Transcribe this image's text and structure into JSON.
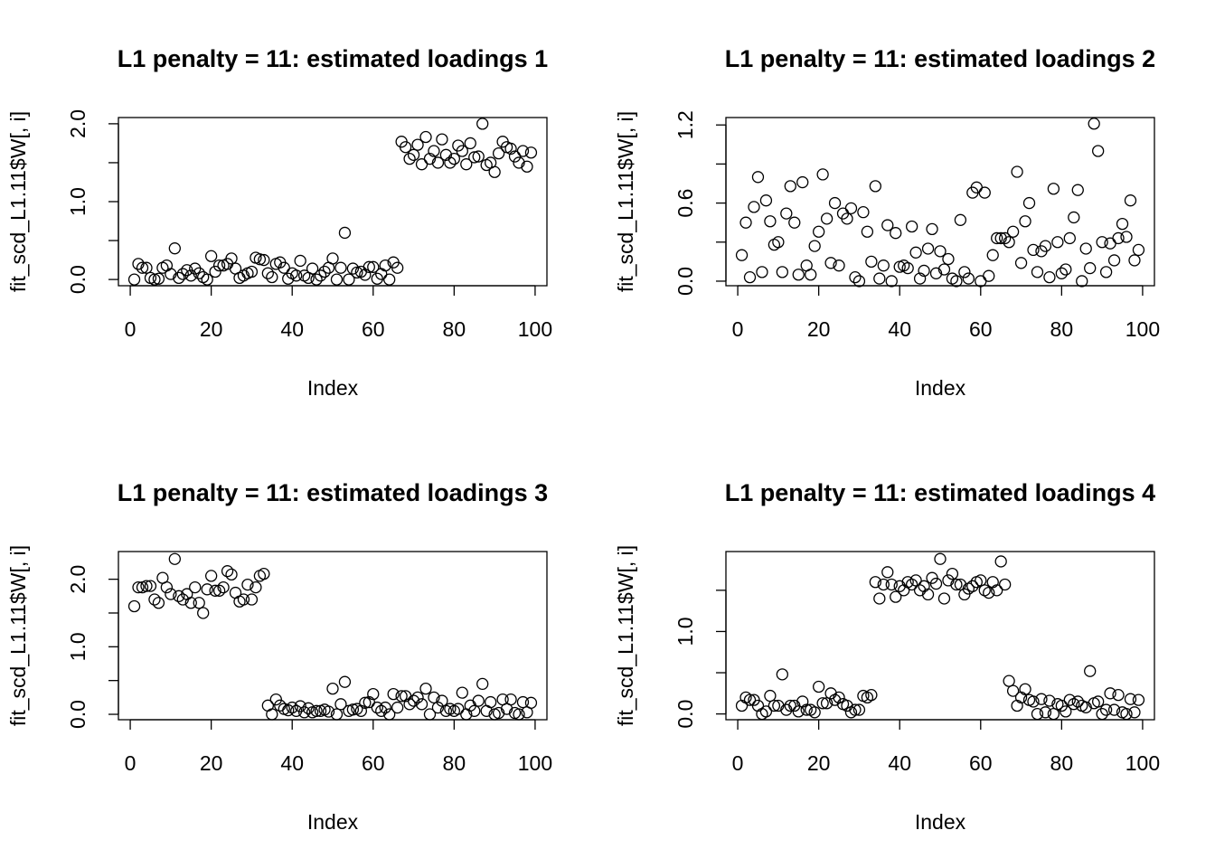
{
  "chart_data": [
    {
      "type": "scatter",
      "title": "L1 penalty = 11: estimated loadings 1",
      "x_label": "Index",
      "y_label": "fit_scd_L1.11$W[, i]",
      "x": [
        1,
        2,
        3,
        4,
        5,
        6,
        7,
        8,
        9,
        10,
        11,
        12,
        13,
        14,
        15,
        16,
        17,
        18,
        19,
        20,
        21,
        22,
        23,
        24,
        25,
        26,
        27,
        28,
        29,
        30,
        31,
        32,
        33,
        34,
        35,
        36,
        37,
        38,
        39,
        40,
        41,
        42,
        43,
        44,
        45,
        46,
        47,
        48,
        49,
        50,
        51,
        52,
        53,
        54,
        55,
        56,
        57,
        58,
        59,
        60,
        61,
        62,
        63,
        64,
        65,
        66,
        67,
        68,
        69,
        70,
        71,
        72,
        73,
        74,
        75,
        76,
        77,
        78,
        79,
        80,
        81,
        82,
        83,
        84,
        85,
        86,
        87,
        88,
        89,
        90,
        91,
        92,
        93,
        94,
        95,
        96,
        97,
        98,
        99
      ],
      "values": [
        0.0,
        0.2,
        0.15,
        0.15,
        0.02,
        0.0,
        0.01,
        0.15,
        0.18,
        0.07,
        0.4,
        0.02,
        0.07,
        0.12,
        0.05,
        0.14,
        0.08,
        0.03,
        0.0,
        0.3,
        0.1,
        0.18,
        0.18,
        0.2,
        0.27,
        0.14,
        0.02,
        0.05,
        0.08,
        0.1,
        0.28,
        0.26,
        0.25,
        0.08,
        0.03,
        0.2,
        0.22,
        0.15,
        0.01,
        0.08,
        0.05,
        0.24,
        0.05,
        0.02,
        0.14,
        0.0,
        0.05,
        0.1,
        0.15,
        0.27,
        0.0,
        0.15,
        0.6,
        0.0,
        0.14,
        0.09,
        0.1,
        0.06,
        0.16,
        0.16,
        0.01,
        0.07,
        0.18,
        0.0,
        0.22,
        0.15,
        1.77,
        1.7,
        1.55,
        1.6,
        1.73,
        1.48,
        1.83,
        1.55,
        1.65,
        1.5,
        1.8,
        1.6,
        1.5,
        1.55,
        1.72,
        1.65,
        1.48,
        1.75,
        1.57,
        1.58,
        2.0,
        1.47,
        1.5,
        1.38,
        1.62,
        1.77,
        1.7,
        1.68,
        1.58,
        1.5,
        1.65,
        1.45,
        1.63
      ],
      "xlim": [
        -2.92,
        102.92
      ],
      "xticks": [
        0,
        20,
        40,
        60,
        80,
        100
      ],
      "ylim": [
        -0.08,
        2.08
      ],
      "yticks": [
        {
          "value": 0,
          "label": "0.0"
        },
        {
          "value": 1,
          "label": "1.0"
        },
        {
          "value": 2,
          "label": "2.0"
        }
      ],
      "yminor_ticks": [
        0.5,
        1.5
      ],
      "color": "#000000"
    },
    {
      "type": "scatter",
      "title": "L1 penalty = 11: estimated loadings 2",
      "x_label": "Index",
      "y_label": "fit_scd_L1.11$W[, i]",
      "x": [
        1,
        2,
        3,
        4,
        5,
        6,
        7,
        8,
        9,
        10,
        11,
        12,
        13,
        14,
        15,
        16,
        17,
        18,
        19,
        20,
        21,
        22,
        23,
        24,
        25,
        26,
        27,
        28,
        29,
        30,
        31,
        32,
        33,
        34,
        35,
        36,
        37,
        38,
        39,
        40,
        41,
        42,
        43,
        44,
        45,
        46,
        47,
        48,
        49,
        50,
        51,
        52,
        53,
        54,
        55,
        56,
        57,
        58,
        59,
        60,
        61,
        62,
        63,
        64,
        65,
        66,
        67,
        68,
        69,
        70,
        71,
        72,
        73,
        74,
        75,
        76,
        77,
        78,
        79,
        80,
        81,
        82,
        83,
        84,
        85,
        86,
        87,
        88,
        89,
        90,
        91,
        92,
        93,
        94,
        95,
        96,
        97,
        98,
        99
      ],
      "values": [
        0.2,
        0.45,
        0.03,
        0.57,
        0.8,
        0.07,
        0.62,
        0.46,
        0.28,
        0.3,
        0.07,
        0.52,
        0.73,
        0.45,
        0.05,
        0.76,
        0.12,
        0.05,
        0.27,
        0.38,
        0.82,
        0.48,
        0.14,
        0.6,
        0.12,
        0.52,
        0.48,
        0.56,
        0.03,
        0.0,
        0.53,
        0.38,
        0.15,
        0.73,
        0.02,
        0.12,
        0.43,
        0.0,
        0.37,
        0.11,
        0.12,
        0.1,
        0.42,
        0.22,
        0.02,
        0.08,
        0.25,
        0.4,
        0.06,
        0.23,
        0.09,
        0.17,
        0.02,
        0.0,
        0.47,
        0.07,
        0.02,
        0.68,
        0.72,
        0.0,
        0.68,
        0.04,
        0.2,
        0.33,
        0.33,
        0.33,
        0.3,
        0.38,
        0.84,
        0.14,
        0.46,
        0.6,
        0.24,
        0.07,
        0.23,
        0.27,
        0.03,
        0.71,
        0.3,
        0.06,
        0.09,
        0.33,
        0.49,
        0.7,
        0.0,
        0.25,
        0.1,
        1.21,
        1.0,
        0.3,
        0.07,
        0.29,
        0.16,
        0.33,
        0.44,
        0.34,
        0.62,
        0.16,
        0.24
      ],
      "xlim": [
        -2.92,
        102.92
      ],
      "xticks": [
        0,
        20,
        40,
        60,
        80,
        100
      ],
      "ylim": [
        -0.035,
        1.257
      ],
      "yticks": [
        {
          "value": 0,
          "label": "0.0"
        },
        0.6,
        1.2
      ],
      "yminor_ticks": [
        0.3,
        0.9
      ],
      "color": "#000000"
    },
    {
      "type": "scatter",
      "title": "L1 penalty = 11: estimated loadings 3",
      "x_label": "Index",
      "y_label": "fit_scd_L1.11$W[, i]",
      "x": [
        1,
        2,
        3,
        4,
        5,
        6,
        7,
        8,
        9,
        10,
        11,
        12,
        13,
        14,
        15,
        16,
        17,
        18,
        19,
        20,
        21,
        22,
        23,
        24,
        25,
        26,
        27,
        28,
        29,
        30,
        31,
        32,
        33,
        34,
        35,
        36,
        37,
        38,
        39,
        40,
        41,
        42,
        43,
        44,
        45,
        46,
        47,
        48,
        49,
        50,
        51,
        52,
        53,
        54,
        55,
        56,
        57,
        58,
        59,
        60,
        61,
        62,
        63,
        64,
        65,
        66,
        67,
        68,
        69,
        70,
        71,
        72,
        73,
        74,
        75,
        76,
        77,
        78,
        79,
        80,
        81,
        82,
        83,
        84,
        85,
        86,
        87,
        88,
        89,
        90,
        91,
        92,
        93,
        94,
        95,
        96,
        97,
        98,
        99
      ],
      "values": [
        1.6,
        1.88,
        1.88,
        1.9,
        1.9,
        1.7,
        1.65,
        2.02,
        1.88,
        1.78,
        2.3,
        1.75,
        1.7,
        1.78,
        1.65,
        1.88,
        1.65,
        1.5,
        1.85,
        2.05,
        1.83,
        1.83,
        1.88,
        2.12,
        2.07,
        1.8,
        1.67,
        1.7,
        1.92,
        1.7,
        1.88,
        2.05,
        2.08,
        0.13,
        0.0,
        0.22,
        0.13,
        0.08,
        0.06,
        0.1,
        0.05,
        0.12,
        0.03,
        0.09,
        0.03,
        0.05,
        0.05,
        0.07,
        0.04,
        0.38,
        0.0,
        0.15,
        0.48,
        0.05,
        0.07,
        0.08,
        0.05,
        0.17,
        0.18,
        0.3,
        0.1,
        0.05,
        0.1,
        0.0,
        0.3,
        0.1,
        0.27,
        0.27,
        0.15,
        0.2,
        0.25,
        0.15,
        0.38,
        0.0,
        0.25,
        0.1,
        0.2,
        0.05,
        0.08,
        0.05,
        0.08,
        0.32,
        0.0,
        0.13,
        0.05,
        0.2,
        0.45,
        0.05,
        0.18,
        0.0,
        0.02,
        0.22,
        0.08,
        0.22,
        0.02,
        0.0,
        0.18,
        0.03,
        0.17
      ],
      "xlim": [
        -2.92,
        102.92
      ],
      "xticks": [
        0,
        20,
        40,
        60,
        80,
        100
      ],
      "ylim": [
        -0.08,
        2.41
      ],
      "yticks": [
        {
          "value": 0,
          "label": "0.0"
        },
        {
          "value": 1,
          "label": "1.0"
        },
        {
          "value": 2,
          "label": "2.0"
        }
      ],
      "yminor_ticks": [
        0.5,
        1.5
      ],
      "color": "#000000"
    },
    {
      "type": "scatter",
      "title": "L1 penalty = 11: estimated loadings 4",
      "x_label": "Index",
      "y_label": "fit_scd_L1.11$W[, i]",
      "x": [
        1,
        2,
        3,
        4,
        5,
        6,
        7,
        8,
        9,
        10,
        11,
        12,
        13,
        14,
        15,
        16,
        17,
        18,
        19,
        20,
        21,
        22,
        23,
        24,
        25,
        26,
        27,
        28,
        29,
        30,
        31,
        32,
        33,
        34,
        35,
        36,
        37,
        38,
        39,
        40,
        41,
        42,
        43,
        44,
        45,
        46,
        47,
        48,
        49,
        50,
        51,
        52,
        53,
        54,
        55,
        56,
        57,
        58,
        59,
        60,
        61,
        62,
        63,
        64,
        65,
        66,
        67,
        68,
        69,
        70,
        71,
        72,
        73,
        74,
        75,
        76,
        77,
        78,
        79,
        80,
        81,
        82,
        83,
        84,
        85,
        86,
        87,
        88,
        89,
        90,
        91,
        92,
        93,
        94,
        95,
        96,
        97,
        98,
        99
      ],
      "values": [
        0.1,
        0.2,
        0.17,
        0.17,
        0.1,
        0.0,
        0.03,
        0.22,
        0.1,
        0.1,
        0.48,
        0.05,
        0.1,
        0.1,
        0.03,
        0.15,
        0.05,
        0.05,
        0.02,
        0.33,
        0.13,
        0.13,
        0.25,
        0.17,
        0.2,
        0.12,
        0.1,
        0.02,
        0.05,
        0.05,
        0.22,
        0.2,
        0.23,
        1.6,
        1.4,
        1.57,
        1.72,
        1.57,
        1.42,
        1.55,
        1.5,
        1.6,
        1.57,
        1.62,
        1.5,
        1.55,
        1.45,
        1.65,
        1.58,
        1.88,
        1.4,
        1.62,
        1.7,
        1.57,
        1.57,
        1.45,
        1.52,
        1.55,
        1.6,
        1.62,
        1.5,
        1.47,
        1.6,
        1.5,
        1.85,
        1.57,
        0.4,
        0.28,
        0.1,
        0.2,
        0.3,
        0.17,
        0.15,
        0.0,
        0.18,
        0.02,
        0.16,
        0.0,
        0.12,
        0.1,
        0.03,
        0.17,
        0.12,
        0.15,
        0.1,
        0.08,
        0.52,
        0.13,
        0.15,
        0.0,
        0.05,
        0.25,
        0.05,
        0.23,
        0.02,
        0.0,
        0.18,
        0.02,
        0.17
      ],
      "xlim": [
        -2.92,
        102.92
      ],
      "xticks": [
        0,
        20,
        40,
        60,
        80,
        100
      ],
      "ylim": [
        -0.07,
        1.97
      ],
      "yticks": [
        {
          "value": 0,
          "label": "0.0"
        },
        {
          "value": 1,
          "label": "1.0"
        }
      ],
      "yminor_ticks": [
        0.5,
        1.5
      ],
      "color": "#000000"
    }
  ]
}
